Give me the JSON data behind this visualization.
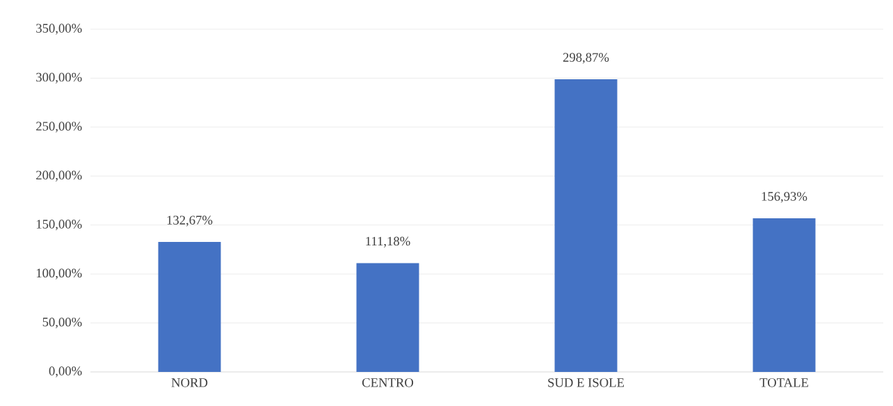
{
  "chart_data": {
    "type": "bar",
    "categories": [
      "NORD",
      "CENTRO",
      "SUD E ISOLE",
      "TOTALE"
    ],
    "values": [
      132.67,
      111.18,
      298.87,
      156.93
    ],
    "value_labels": [
      "132,67%",
      "111,18%",
      "298,87%",
      "156,93%"
    ],
    "color": "#4472c4",
    "ylim": [
      0,
      350
    ],
    "yticks": [
      {
        "value": 0,
        "label": "0,00%"
      },
      {
        "value": 50,
        "label": "50,00%"
      },
      {
        "value": 100,
        "label": "100,00%"
      },
      {
        "value": 150,
        "label": "150,00%"
      },
      {
        "value": 200,
        "label": "200,00%"
      },
      {
        "value": 250,
        "label": "250,00%"
      },
      {
        "value": 300,
        "label": "300,00%"
      },
      {
        "value": 350,
        "label": "350,00%"
      }
    ],
    "grid": "y"
  }
}
